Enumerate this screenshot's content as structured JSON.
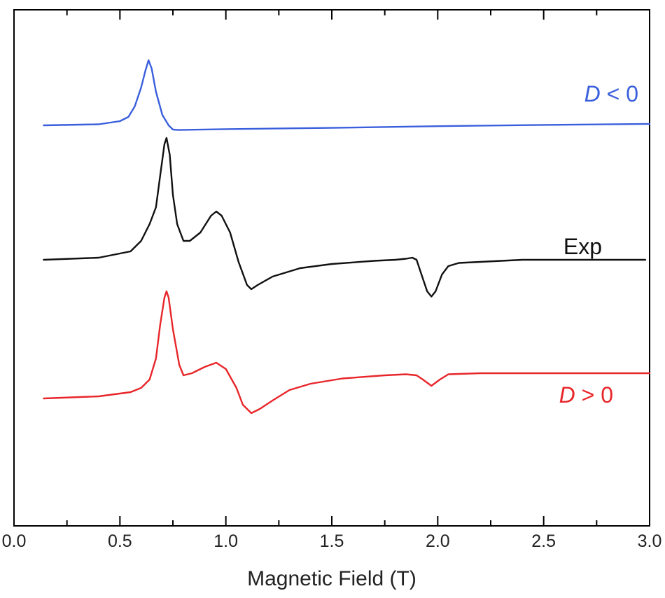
{
  "chart_data": {
    "type": "line",
    "title": "",
    "xlabel": "Magnetic Field (T)",
    "ylabel": "",
    "xlim": [
      0.0,
      3.0
    ],
    "xticks": [
      "0.0",
      "0.5",
      "1.0",
      "1.5",
      "2.0",
      "2.5",
      "3.0"
    ],
    "y_ticks_labeled": false,
    "grid": false,
    "legend": "none",
    "series": [
      {
        "name": "D < 0",
        "label_main": "D",
        "label_rest": " < 0",
        "color": "#3a5fdc",
        "points": [
          [
            0.14,
            0.84
          ],
          [
            0.4,
            0.845
          ],
          [
            0.5,
            0.86
          ],
          [
            0.54,
            0.88
          ],
          [
            0.57,
            0.93
          ],
          [
            0.6,
            1.02
          ],
          [
            0.62,
            1.1
          ],
          [
            0.635,
            1.15
          ],
          [
            0.65,
            1.11
          ],
          [
            0.67,
            1.0
          ],
          [
            0.7,
            0.89
          ],
          [
            0.73,
            0.84
          ],
          [
            0.75,
            0.82
          ],
          [
            0.78,
            0.818
          ],
          [
            1.0,
            0.822
          ],
          [
            1.5,
            0.828
          ],
          [
            2.0,
            0.836
          ],
          [
            2.5,
            0.842
          ],
          [
            3.0,
            0.847
          ]
        ]
      },
      {
        "name": "Exp",
        "color": "#111111",
        "points": [
          [
            0.14,
            0.2
          ],
          [
            0.4,
            0.21
          ],
          [
            0.55,
            0.24
          ],
          [
            0.6,
            0.29
          ],
          [
            0.64,
            0.37
          ],
          [
            0.67,
            0.45
          ],
          [
            0.69,
            0.6
          ],
          [
            0.71,
            0.75
          ],
          [
            0.72,
            0.78
          ],
          [
            0.735,
            0.7
          ],
          [
            0.75,
            0.51
          ],
          [
            0.77,
            0.37
          ],
          [
            0.8,
            0.29
          ],
          [
            0.83,
            0.29
          ],
          [
            0.88,
            0.33
          ],
          [
            0.93,
            0.41
          ],
          [
            0.955,
            0.43
          ],
          [
            0.98,
            0.41
          ],
          [
            1.02,
            0.33
          ],
          [
            1.06,
            0.19
          ],
          [
            1.1,
            0.08
          ],
          [
            1.12,
            0.06
          ],
          [
            1.15,
            0.08
          ],
          [
            1.22,
            0.12
          ],
          [
            1.35,
            0.16
          ],
          [
            1.5,
            0.18
          ],
          [
            1.7,
            0.195
          ],
          [
            1.8,
            0.2
          ],
          [
            1.85,
            0.205
          ],
          [
            1.88,
            0.21
          ],
          [
            1.9,
            0.2
          ],
          [
            1.92,
            0.14
          ],
          [
            1.95,
            0.05
          ],
          [
            1.97,
            0.025
          ],
          [
            1.99,
            0.05
          ],
          [
            2.02,
            0.13
          ],
          [
            2.05,
            0.17
          ],
          [
            2.1,
            0.185
          ],
          [
            2.3,
            0.195
          ],
          [
            2.4,
            0.2
          ],
          [
            2.98,
            0.2
          ]
        ]
      },
      {
        "name": "D > 0",
        "label_main": "D",
        "label_rest": " > 0",
        "color": "#e8262a",
        "points": [
          [
            0.14,
            -0.46
          ],
          [
            0.4,
            -0.45
          ],
          [
            0.55,
            -0.43
          ],
          [
            0.6,
            -0.41
          ],
          [
            0.64,
            -0.37
          ],
          [
            0.67,
            -0.27
          ],
          [
            0.69,
            -0.11
          ],
          [
            0.71,
            0.02
          ],
          [
            0.72,
            0.05
          ],
          [
            0.73,
            0.02
          ],
          [
            0.75,
            -0.13
          ],
          [
            0.78,
            -0.3
          ],
          [
            0.8,
            -0.35
          ],
          [
            0.84,
            -0.34
          ],
          [
            0.9,
            -0.31
          ],
          [
            0.955,
            -0.29
          ],
          [
            1.0,
            -0.32
          ],
          [
            1.05,
            -0.41
          ],
          [
            1.08,
            -0.49
          ],
          [
            1.12,
            -0.53
          ],
          [
            1.16,
            -0.51
          ],
          [
            1.22,
            -0.47
          ],
          [
            1.3,
            -0.42
          ],
          [
            1.4,
            -0.39
          ],
          [
            1.55,
            -0.365
          ],
          [
            1.75,
            -0.35
          ],
          [
            1.85,
            -0.345
          ],
          [
            1.9,
            -0.35
          ],
          [
            1.93,
            -0.37
          ],
          [
            1.97,
            -0.4
          ],
          [
            2.01,
            -0.37
          ],
          [
            2.05,
            -0.345
          ],
          [
            2.2,
            -0.34
          ],
          [
            3.0,
            -0.34
          ]
        ]
      }
    ]
  }
}
